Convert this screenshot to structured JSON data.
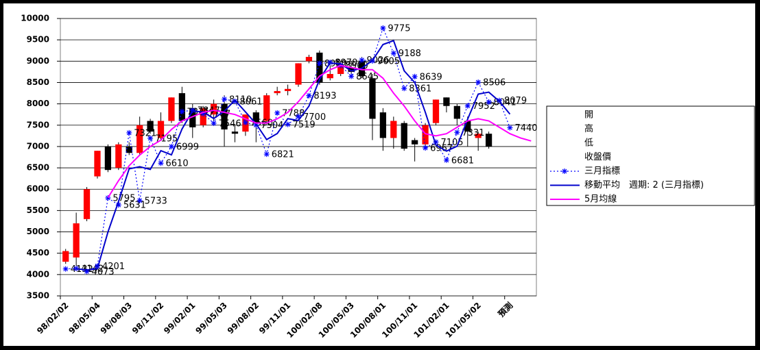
{
  "chart_data": {
    "type": "candlestick",
    "categories": [
      "98/02/02",
      null,
      null,
      "98/05/04",
      null,
      null,
      "98/08/03",
      null,
      null,
      "98/11/02",
      null,
      null,
      "99/02/01",
      null,
      null,
      "99/05/03",
      null,
      null,
      "99/08/02",
      null,
      null,
      "99/11/01",
      null,
      null,
      "100/02/08",
      null,
      null,
      "100/05/03",
      null,
      null,
      "100/08/01",
      null,
      null,
      "100/11/01",
      null,
      null,
      "101/02/01",
      null,
      null,
      "101/05/02",
      null,
      null,
      "預測",
      null,
      null
    ],
    "ylim": [
      3500,
      10000
    ],
    "yticks": [
      3500,
      4000,
      4500,
      5000,
      5500,
      6000,
      6500,
      7000,
      7500,
      8000,
      8500,
      9000,
      9500,
      10000
    ],
    "grid": true,
    "up_color": "#ff0000",
    "down_color": "#000000",
    "series": [
      {
        "name": "開",
        "values": [
          4300,
          4400,
          5300,
          6300,
          7000,
          6500,
          7000,
          6850,
          7600,
          7200,
          7600,
          8250,
          7900,
          7500,
          7750,
          8000,
          7350,
          7350,
          7800,
          7600,
          8250,
          8300,
          8450,
          9000,
          9200,
          8600,
          8700,
          8850,
          9000,
          8600,
          7800,
          7200,
          7550,
          7150,
          7050,
          7550,
          8150,
          7950,
          7600,
          7200,
          7300,
          null,
          null,
          null,
          null
        ]
      },
      {
        "name": "高",
        "values": [
          4600,
          5450,
          6050,
          6900,
          7050,
          7100,
          7100,
          7700,
          7650,
          7800,
          8150,
          8400,
          8000,
          7950,
          8100,
          8200,
          7500,
          7750,
          7850,
          8250,
          8400,
          8450,
          8950,
          9150,
          9250,
          8900,
          9000,
          9000,
          9100,
          8700,
          7900,
          7700,
          7600,
          7200,
          7550,
          8100,
          8150,
          8000,
          7700,
          7350,
          7350,
          null,
          null,
          null,
          null
        ]
      },
      {
        "name": "低",
        "values": [
          4250,
          4200,
          5250,
          6250,
          6400,
          6450,
          6800,
          6800,
          7300,
          7150,
          7550,
          7550,
          7200,
          7450,
          7600,
          7000,
          7100,
          7250,
          7100,
          7550,
          8200,
          8200,
          8400,
          8950,
          8450,
          8550,
          8650,
          8650,
          8600,
          7150,
          6900,
          6950,
          6900,
          6650,
          7000,
          7500,
          7800,
          7500,
          7000,
          6900,
          6950,
          null,
          null,
          null,
          null
        ]
      },
      {
        "name": "收盤價",
        "values": [
          4550,
          5200,
          6000,
          6900,
          6450,
          7050,
          6850,
          7500,
          7350,
          7600,
          8150,
          7600,
          7450,
          7900,
          8000,
          7400,
          7300,
          7750,
          7550,
          8200,
          8300,
          8350,
          8950,
          9100,
          8500,
          8700,
          8900,
          8750,
          8650,
          7650,
          7200,
          7600,
          6950,
          7050,
          7500,
          8100,
          7950,
          7650,
          7350,
          7300,
          7000,
          null,
          null,
          null,
          null
        ]
      },
      {
        "name": "三月指標",
        "color": "#0000ff",
        "style": "dotted",
        "marker": "star",
        "labels": true,
        "values": [
          4132,
          4142,
          4073,
          4201,
          5795,
          5631,
          7321,
          5733,
          7195,
          6610,
          6999,
          7821,
          7847,
          7767,
          7546,
          8110,
          8061,
          7560,
          7504,
          6821,
          7788,
          7519,
          7700,
          8193,
          8950,
          8970,
          8900,
          8645,
          9026,
          9005,
          9775,
          9188,
          8361,
          8639,
          6967,
          7105,
          6681,
          7331,
          7952,
          8506,
          8041,
          8079,
          7440,
          null,
          null
        ]
      },
      {
        "name": "移動平均　週期: 2 (三月指標)",
        "color": "#0000cc",
        "style": "solid",
        "values": [
          null,
          4137,
          4107.5,
          4137,
          4998,
          5713,
          6476,
          6527,
          6464,
          6902.5,
          6804.5,
          7410,
          7834,
          7807,
          7656.5,
          7828,
          8085.5,
          7810.5,
          7532,
          7162.5,
          7304.5,
          7653.5,
          7609.5,
          7946.5,
          8571.5,
          8960,
          8935,
          8772.5,
          8835.5,
          9015.5,
          9390,
          9481.5,
          8774.5,
          8500,
          7803,
          7036,
          6893,
          7006,
          7641.5,
          8229,
          8273.5,
          8060,
          7759.5,
          null,
          null
        ]
      },
      {
        "name": "5月均線",
        "color": "#ff00ff",
        "style": "solid",
        "values": [
          null,
          null,
          null,
          null,
          5800,
          6200,
          6550,
          6800,
          7000,
          7150,
          7400,
          7600,
          7700,
          7800,
          7850,
          7800,
          7750,
          7650,
          7550,
          7550,
          7650,
          7800,
          8050,
          8350,
          8650,
          8800,
          8900,
          8850,
          8800,
          8800,
          8600,
          8250,
          7950,
          7600,
          7300,
          7250,
          7300,
          7450,
          7600,
          7650,
          7600,
          7450,
          7300,
          7200,
          7130
        ]
      }
    ]
  }
}
